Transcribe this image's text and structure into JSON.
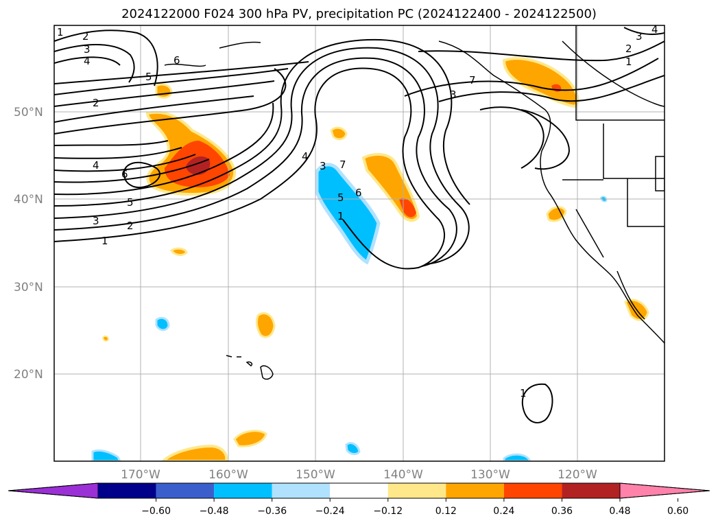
{
  "title": "2024122000 F024 300 hPa PV, precipitation PC (2024122400 - 2024122500)",
  "lat_labels": [
    "50°N",
    "40°N",
    "30°N",
    "20°N"
  ],
  "lon_labels": [
    "170°W",
    "160°W",
    "150°W",
    "140°W",
    "130°W",
    "120°W"
  ],
  "colorbar": {
    "tick_labels": [
      "−0.60",
      "−0.48",
      "−0.36",
      "−0.24",
      "−0.12",
      "0.12",
      "0.24",
      "0.36",
      "0.48",
      "0.60"
    ],
    "colors": [
      "#9b30d6",
      "#00008b",
      "#3a5fcd",
      "#00bfff",
      "#b0e2ff",
      "#ffffff",
      "#ffe88a",
      "#ffa500",
      "#ff4500",
      "#b22222",
      "#ff82ab"
    ]
  },
  "contour_labels": [
    "1",
    "2",
    "3",
    "4",
    "5",
    "6",
    "2",
    "1",
    "6",
    "5",
    "4",
    "3",
    "2",
    "1",
    "4",
    "7",
    "6",
    "5",
    "3",
    "3",
    "1",
    "2",
    "3",
    "4",
    "7",
    "1"
  ]
}
